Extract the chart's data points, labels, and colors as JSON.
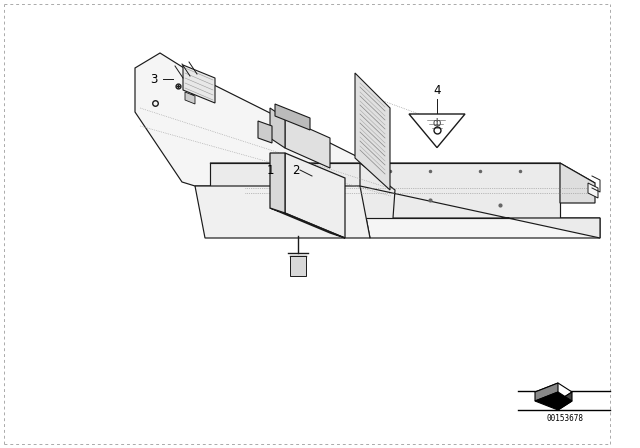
{
  "background_color": "#ffffff",
  "figure_id": "00153678",
  "label_fontsize": 8.5
}
